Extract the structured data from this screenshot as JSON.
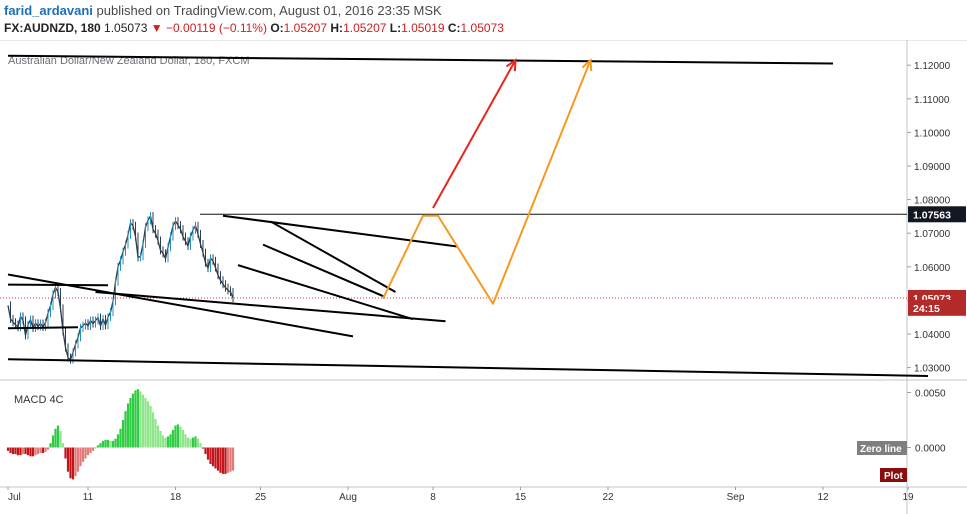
{
  "header": {
    "author": "farid_ardavani",
    "published_text": "published on TradingView.com, August 01, 2016 23:35 MSK",
    "symbol": "FX:AUDNZD, 180",
    "last": "1.05073",
    "change": "−0.00119 (−0.11%)",
    "o_label": "O:",
    "o": "1.05207",
    "h_label": "H:",
    "h": "1.05207",
    "l_label": "L:",
    "l": "1.05019",
    "c_label": "C:",
    "c": "1.05073"
  },
  "chart_data": {
    "type": "line",
    "title": "Australian Dollar/New Zealand Dollar, 180, FXCM",
    "price_axis": {
      "range": [
        1.027,
        1.1285
      ],
      "ticks": [
        "1.03000",
        "1.04000",
        "1.05000",
        "1.06000",
        "1.07000",
        "1.08000",
        "1.09000",
        "1.10000",
        "1.11000",
        "1.12000"
      ],
      "tick_values": [
        1.03,
        1.04,
        1.05,
        1.06,
        1.07,
        1.08,
        1.09,
        1.1,
        1.11,
        1.12
      ],
      "badges": [
        {
          "label": "1.07563",
          "value": 1.07563,
          "style": "dark"
        },
        {
          "label": "1.05073",
          "value": 1.05073,
          "style": "red"
        },
        {
          "label": "24:15",
          "value": 1.0478,
          "style": "red"
        }
      ]
    },
    "time_axis": {
      "labels": [
        "Jul",
        "11",
        "18",
        "25",
        "Aug",
        "8",
        "15",
        "22",
        "Sep",
        "12",
        "19"
      ],
      "label_index": [
        0,
        32,
        67,
        101,
        136,
        170,
        205,
        240,
        291,
        326,
        360
      ]
    },
    "series": [
      {
        "values": [
          1.0485,
          1.0445,
          1.0435,
          1.0428,
          1.042,
          1.0452,
          1.0441,
          1.0396,
          1.0427,
          1.0443,
          1.0418,
          1.0432,
          1.0423,
          1.0431,
          1.0421,
          1.0434,
          1.0462,
          1.0483,
          1.0518,
          1.0538,
          1.0525,
          1.0476,
          1.0408,
          1.036,
          1.033,
          1.0324,
          1.0345,
          1.0369,
          1.039,
          1.0418,
          1.0425,
          1.0432,
          1.0424,
          1.044,
          1.0431,
          1.044,
          1.0449,
          1.0424,
          1.0445,
          1.0426,
          1.045,
          1.0465,
          1.0498,
          1.0556,
          1.06,
          1.0619,
          1.0645,
          1.0666,
          1.0695,
          1.073,
          1.0722,
          1.069,
          1.0628,
          1.0631,
          1.0668,
          1.0718,
          1.0738,
          1.0751,
          1.0712,
          1.0699,
          1.0678,
          1.0649,
          1.064,
          1.0625,
          1.0658,
          1.069,
          1.0722,
          1.0736,
          1.0724,
          1.0712,
          1.069,
          1.0676,
          1.0662,
          1.069,
          1.071,
          1.0722,
          1.0698,
          1.0668,
          1.0642,
          1.0612,
          1.0596,
          1.0625,
          1.0618,
          1.0598,
          1.0575,
          1.056,
          1.0548,
          1.0538,
          1.053,
          1.0525,
          1.0507
        ],
        "start_index": 0
      }
    ],
    "levels": [
      {
        "name": "resistance",
        "value": 1.07563
      },
      {
        "name": "last-price",
        "value": 1.05073
      }
    ],
    "trendlines": [
      {
        "name": "top-channel",
        "from": [
          0,
          1.1228
        ],
        "to": [
          330,
          1.1205
        ],
        "color": "#000000"
      },
      {
        "name": "bottom-channel",
        "from": [
          0,
          1.0325
        ],
        "to": [
          368,
          1.0275
        ],
        "color": "#000000"
      },
      {
        "name": "left-descending",
        "from": [
          0,
          1.0577
        ],
        "to": [
          138,
          1.0393
        ],
        "color": "#000000"
      },
      {
        "name": "left-support",
        "from": [
          0,
          1.0417
        ],
        "to": [
          28,
          1.042
        ],
        "color": "#000000"
      },
      {
        "name": "left-resistance",
        "from": [
          0,
          1.0547
        ],
        "to": [
          40,
          1.0545
        ],
        "color": "#000000"
      },
      {
        "name": "mid-descending",
        "from": [
          35,
          1.0525
        ],
        "to": [
          175,
          1.0438
        ],
        "color": "#000000"
      },
      {
        "name": "flag-top",
        "from": [
          86,
          1.0752
        ],
        "to": [
          180,
          1.066
        ],
        "color": "#000000"
      },
      {
        "name": "wedge-upper",
        "from": [
          105,
          1.0735
        ],
        "to": [
          155,
          1.0525
        ],
        "color": "#000000"
      },
      {
        "name": "wedge-lower",
        "from": [
          92,
          1.0605
        ],
        "to": [
          162,
          1.0444
        ],
        "color": "#000000"
      },
      {
        "name": "wedge-bottom",
        "from": [
          102,
          1.0666
        ],
        "to": [
          150,
          1.0513
        ],
        "color": "#000000"
      }
    ],
    "arrows": [
      {
        "name": "red-projection",
        "points": [
          [
            170,
            1.0775
          ],
          [
            203,
            1.1215
          ]
        ],
        "color": "#e8241d"
      },
      {
        "name": "orange-projection",
        "points": [
          [
            150,
            1.0505
          ],
          [
            166,
            1.0752
          ],
          [
            172,
            1.0752
          ],
          [
            194,
            1.049
          ],
          [
            233,
            1.1215
          ]
        ],
        "color": "#f59a20"
      }
    ],
    "macd": {
      "title": "MACD 4C",
      "range": [
        -0.0042,
        0.0065
      ],
      "ticks": [
        "0.0050",
        "0.0000"
      ],
      "tick_values": [
        0.005,
        0.0
      ],
      "buttons": [
        "Zero line",
        "Plot"
      ],
      "values": [
        -0.0003,
        -0.0005,
        -0.0006,
        -0.0006,
        -0.0007,
        -0.0007,
        -0.0006,
        -0.0006,
        -0.0007,
        -0.0008,
        -0.0008,
        -0.0007,
        -0.0006,
        -0.0005,
        -0.0005,
        -0.0004,
        -0.0002,
        0.0004,
        0.0011,
        0.0017,
        0.002,
        0.0015,
        0.0004,
        -0.001,
        -0.0022,
        -0.0028,
        -0.0029,
        -0.0026,
        -0.0022,
        -0.0017,
        -0.0013,
        -0.001,
        -0.0007,
        -0.0005,
        -0.0003,
        0.0,
        0.0002,
        0.0004,
        0.0006,
        0.0007,
        0.0007,
        0.0006,
        0.0006,
        0.0008,
        0.0012,
        0.0017,
        0.0025,
        0.0033,
        0.004,
        0.0045,
        0.0049,
        0.0052,
        0.0053,
        0.0051,
        0.0048,
        0.0045,
        0.0042,
        0.0038,
        0.0032,
        0.0026,
        0.002,
        0.0015,
        0.0011,
        0.0009,
        0.001,
        0.0012,
        0.0016,
        0.002,
        0.0021,
        0.0019,
        0.0016,
        0.0012,
        0.0009,
        0.0008,
        0.0009,
        0.001,
        0.0008,
        0.0004,
        -0.0001,
        -0.0006,
        -0.0011,
        -0.0015,
        -0.0017,
        -0.0019,
        -0.0021,
        -0.0023,
        -0.0024,
        -0.0024,
        -0.0023,
        -0.0022,
        -0.0021
      ]
    }
  }
}
